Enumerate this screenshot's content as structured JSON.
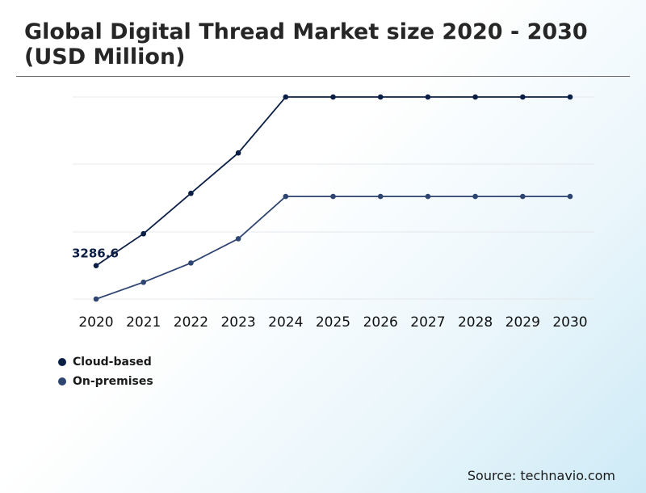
{
  "title": "Global Digital Thread Market size 2020 - 2030 (USD Million)",
  "source": "Source: technavio.com",
  "colors": {
    "cloud": "#0b1f45",
    "onprem": "#2e4471",
    "grid": "#e4e8ec"
  },
  "chart_data": {
    "type": "line",
    "categories": [
      "2020",
      "2021",
      "2022",
      "2023",
      "2024",
      "2025",
      "2026",
      "2027",
      "2028",
      "2029",
      "2030"
    ],
    "series": [
      {
        "name": "Cloud-based",
        "values": [
          3286.6,
          3800,
          4450,
          5100,
          6000,
          6000,
          6000,
          6000,
          6000,
          6000,
          6000
        ]
      },
      {
        "name": "On-premises",
        "values": [
          2750,
          3020,
          3330,
          3720,
          4400,
          4400,
          4400,
          4400,
          4400,
          4400,
          4400
        ]
      }
    ],
    "data_labels": [
      {
        "series": 0,
        "index": 0,
        "text": "3286.6"
      }
    ],
    "ylim": [
      2750,
      6000
    ],
    "grid": true,
    "legend_position": "bottom-left"
  }
}
